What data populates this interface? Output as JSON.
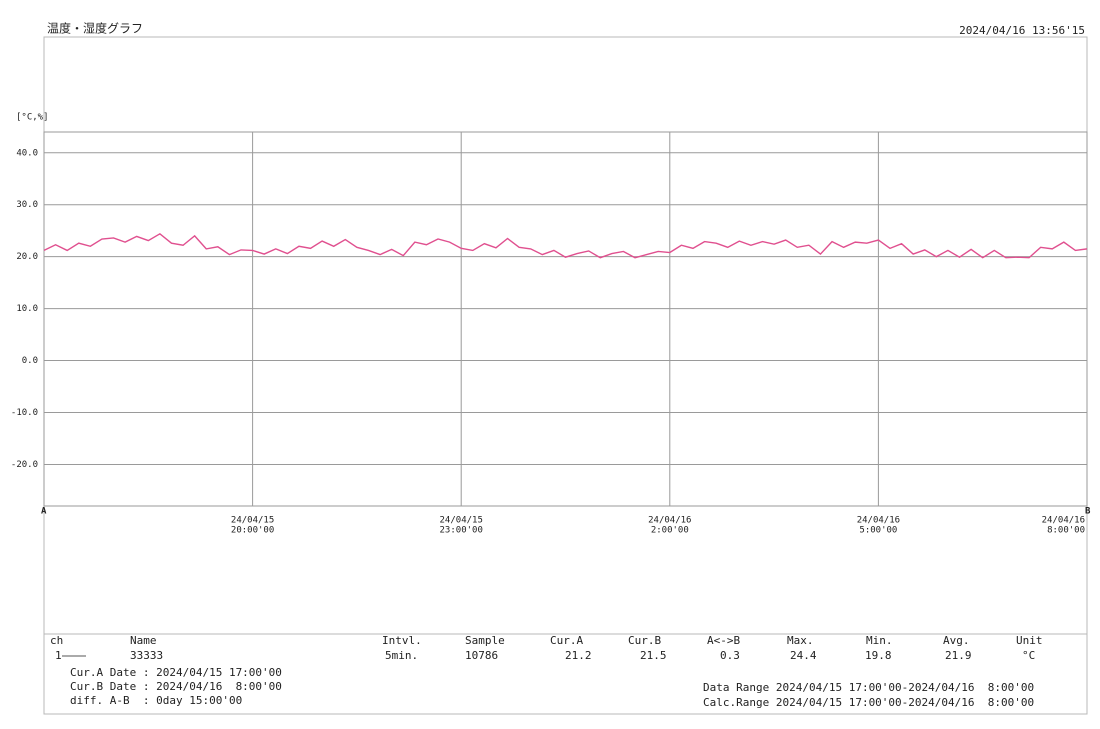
{
  "chart_data": {
    "type": "line",
    "title": "温度・湿度グラフ",
    "timestamp": "2024/04/16 13:56'15",
    "ylabel": "[°C,%]",
    "cursor_a_label": "A",
    "cursor_b_label": "B",
    "x": [
      "2024-04-15 17:00",
      "2024-04-15 17:10",
      "2024-04-15 17:20",
      "2024-04-15 17:30",
      "2024-04-15 17:40",
      "2024-04-15 17:50",
      "2024-04-15 18:00",
      "2024-04-15 18:10",
      "2024-04-15 18:20",
      "2024-04-15 18:30",
      "2024-04-15 18:40",
      "2024-04-15 18:50",
      "2024-04-15 19:00",
      "2024-04-15 19:10",
      "2024-04-15 19:20",
      "2024-04-15 19:30",
      "2024-04-15 19:40",
      "2024-04-15 19:50",
      "2024-04-15 20:00",
      "2024-04-15 20:10",
      "2024-04-15 20:20",
      "2024-04-15 20:30",
      "2024-04-15 20:40",
      "2024-04-15 20:50",
      "2024-04-15 21:00",
      "2024-04-15 21:10",
      "2024-04-15 21:20",
      "2024-04-15 21:30",
      "2024-04-15 21:40",
      "2024-04-15 21:50",
      "2024-04-15 22:00",
      "2024-04-15 22:10",
      "2024-04-15 22:20",
      "2024-04-15 22:30",
      "2024-04-15 22:40",
      "2024-04-15 22:50",
      "2024-04-15 23:00",
      "2024-04-15 23:10",
      "2024-04-15 23:20",
      "2024-04-15 23:30",
      "2024-04-15 23:40",
      "2024-04-15 23:50",
      "2024-04-16 00:00",
      "2024-04-16 00:10",
      "2024-04-16 00:20",
      "2024-04-16 00:30",
      "2024-04-16 00:40",
      "2024-04-16 00:50",
      "2024-04-16 01:00",
      "2024-04-16 01:10",
      "2024-04-16 01:20",
      "2024-04-16 01:30",
      "2024-04-16 01:40",
      "2024-04-16 01:50",
      "2024-04-16 02:00",
      "2024-04-16 02:10",
      "2024-04-16 02:20",
      "2024-04-16 02:30",
      "2024-04-16 02:40",
      "2024-04-16 02:50",
      "2024-04-16 03:00",
      "2024-04-16 03:10",
      "2024-04-16 03:20",
      "2024-04-16 03:30",
      "2024-04-16 03:40",
      "2024-04-16 03:50",
      "2024-04-16 04:00",
      "2024-04-16 04:10",
      "2024-04-16 04:20",
      "2024-04-16 04:30",
      "2024-04-16 04:40",
      "2024-04-16 04:50",
      "2024-04-16 05:00",
      "2024-04-16 05:10",
      "2024-04-16 05:20",
      "2024-04-16 05:30",
      "2024-04-16 05:40",
      "2024-04-16 05:50",
      "2024-04-16 06:00",
      "2024-04-16 06:10",
      "2024-04-16 06:20",
      "2024-04-16 06:30",
      "2024-04-16 06:40",
      "2024-04-16 06:50",
      "2024-04-16 07:00",
      "2024-04-16 07:10",
      "2024-04-16 07:20",
      "2024-04-16 07:30",
      "2024-04-16 07:40",
      "2024-04-16 07:50",
      "2024-04-16 08:00"
    ],
    "series": [
      {
        "name": "33333",
        "color": "#e0508f",
        "values": [
          21.2,
          22.3,
          21.2,
          22.6,
          22.0,
          23.4,
          23.6,
          22.8,
          23.9,
          23.1,
          24.4,
          22.6,
          22.2,
          24.0,
          21.5,
          21.9,
          20.4,
          21.3,
          21.2,
          20.5,
          21.5,
          20.6,
          22.0,
          21.6,
          23.0,
          22.0,
          23.3,
          21.8,
          21.2,
          20.4,
          21.4,
          20.2,
          22.8,
          22.3,
          23.4,
          22.8,
          21.6,
          21.2,
          22.5,
          21.7,
          23.5,
          21.8,
          21.5,
          20.4,
          21.2,
          19.9,
          20.6,
          21.1,
          19.8,
          20.6,
          21.0,
          19.8,
          20.4,
          21.0,
          20.8,
          22.2,
          21.6,
          22.9,
          22.6,
          21.8,
          23.0,
          22.2,
          22.9,
          22.4,
          23.2,
          21.8,
          22.2,
          20.5,
          22.9,
          21.8,
          22.8,
          22.6,
          23.2,
          21.6,
          22.5,
          20.5,
          21.3,
          20.0,
          21.2,
          19.9,
          21.4,
          19.8,
          21.2,
          19.8,
          19.9,
          19.8,
          21.8,
          21.5,
          22.8,
          21.2,
          21.5
        ]
      }
    ],
    "xlim": [
      "2024-04-15 17:00",
      "2024-04-16 08:00"
    ],
    "xticks": [
      {
        "value": "2024-04-15 20:00",
        "label": [
          "24/04/15",
          "20:00'00"
        ]
      },
      {
        "value": "2024-04-15 23:00",
        "label": [
          "24/04/15",
          "23:00'00"
        ]
      },
      {
        "value": "2024-04-16 02:00",
        "label": [
          "24/04/16",
          "2:00'00"
        ]
      },
      {
        "value": "2024-04-16 05:00",
        "label": [
          "24/04/16",
          "5:00'00"
        ]
      },
      {
        "value": "2024-04-16 08:00",
        "label": [
          "24/04/16",
          "8:00'00"
        ]
      }
    ],
    "ylim": [
      -28,
      44
    ],
    "yticks": [
      {
        "value": 40,
        "label": "40.0"
      },
      {
        "value": 30,
        "label": "30.0"
      },
      {
        "value": 20,
        "label": "20.0"
      },
      {
        "value": 10,
        "label": "10.0"
      },
      {
        "value": 0,
        "label": "0.0"
      },
      {
        "value": -10,
        "label": "-10.0"
      },
      {
        "value": -20,
        "label": "-20.0"
      }
    ],
    "grid": true
  },
  "info": {
    "header": [
      "ch",
      "Name",
      "Intvl.",
      "Sample",
      "Cur.A",
      "Cur.B",
      "A<->B",
      "Max.",
      "Min.",
      "Avg.",
      "Unit"
    ],
    "row": [
      "1",
      "33333",
      "5min.",
      "10786",
      "21.2",
      "21.5",
      "0.3",
      "24.4",
      "19.8",
      "21.9",
      "°C"
    ],
    "cursors": [
      "Cur.A Date : 2024/04/15 17:00'00",
      "Cur.B Date : 2024/04/16  8:00'00",
      "diff. A-B  : 0day 15:00'00"
    ],
    "ranges": [
      "Data Range 2024/04/15 17:00'00-2024/04/16  8:00'00",
      "Calc.Range 2024/04/15 17:00'00-2024/04/16  8:00'00"
    ]
  }
}
